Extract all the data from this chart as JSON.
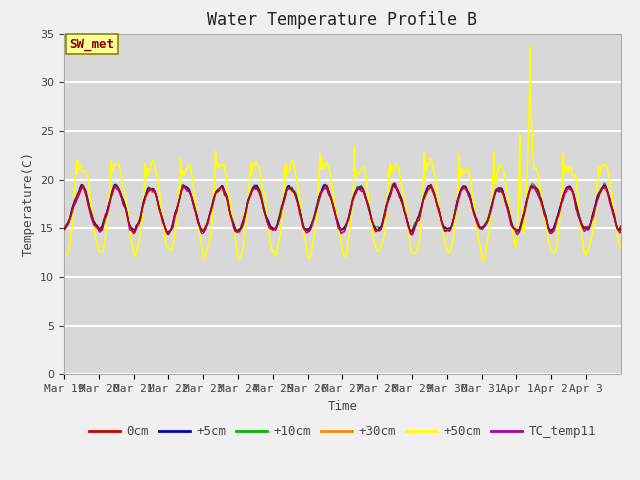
{
  "title": "Water Temperature Profile B",
  "xlabel": "Time",
  "ylabel": "Temperature(C)",
  "ylim": [
    0,
    35
  ],
  "yticks": [
    0,
    5,
    10,
    15,
    20,
    25,
    30,
    35
  ],
  "series_colors": {
    "0cm": "#cc0000",
    "+5cm": "#0000cc",
    "+10cm": "#00bb00",
    "+30cm": "#ff8800",
    "+50cm": "#ffff00",
    "TC_temp11": "#aa00aa"
  },
  "annotation_text": "SW_met",
  "annotation_color": "#880000",
  "annotation_bg": "#ffff99",
  "annotation_border": "#888800",
  "figure_bg": "#f0f0f0",
  "plot_bg": "#d8d8d8",
  "grid_color": "#ffffff",
  "tick_labels": [
    "Mar 19",
    "Mar 20",
    "Mar 21",
    "Mar 22",
    "Mar 23",
    "Mar 24",
    "Mar 25",
    "Mar 26",
    "Mar 27",
    "Mar 28",
    "Mar 29",
    "Mar 30",
    "Mar 31",
    "Apr 1",
    "Apr 2",
    "Apr 3"
  ],
  "title_fontsize": 12,
  "axis_fontsize": 9,
  "tick_fontsize": 8,
  "legend_fontsize": 9
}
